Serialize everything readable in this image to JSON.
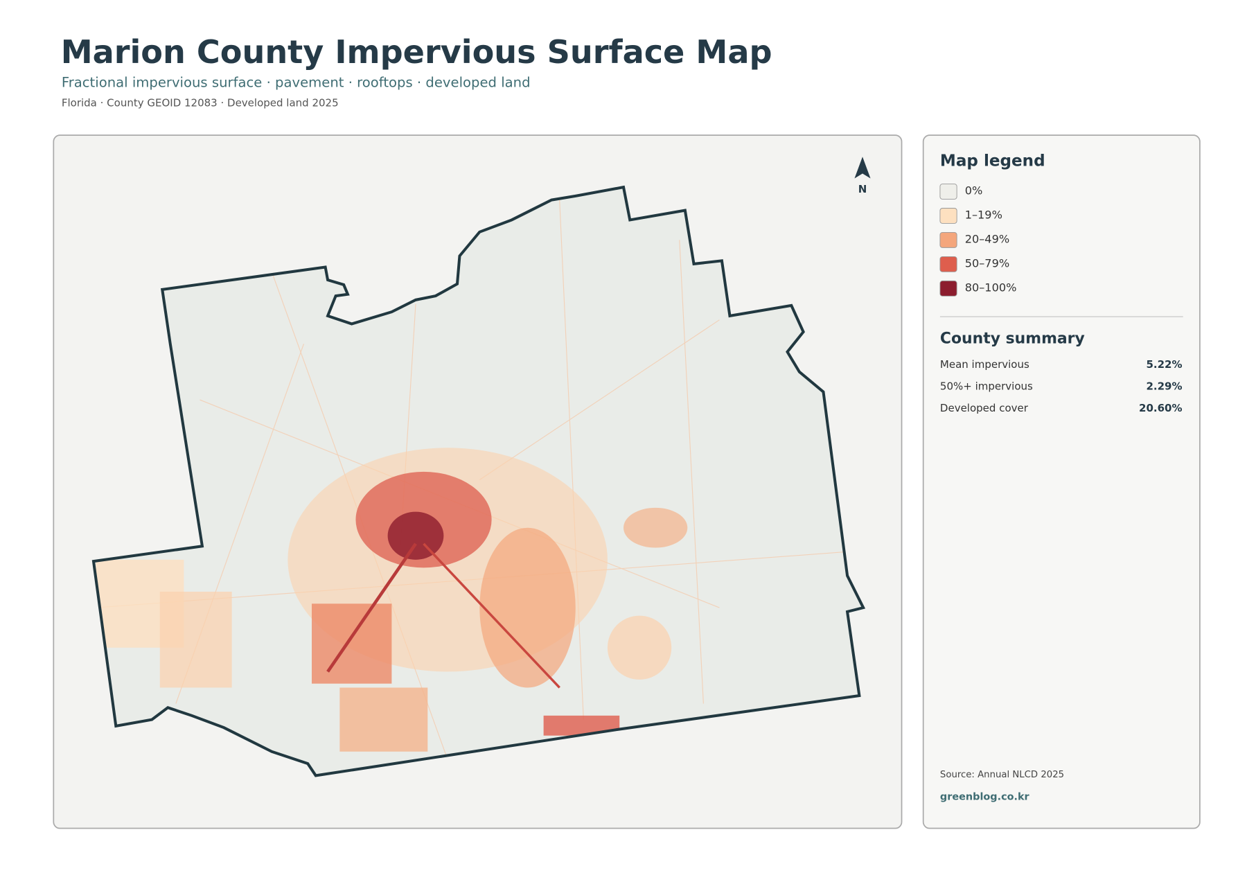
{
  "header": {
    "title": "Marion County Impervious Surface Map",
    "subtitle": "Fractional impervious surface · pavement · rooftops · developed land",
    "meta": "Florida · County GEOID 12083 · Developed land 2025"
  },
  "map": {
    "north_label": "N"
  },
  "legend": {
    "title": "Map legend",
    "items": [
      {
        "label": "0%",
        "color": "#efefea"
      },
      {
        "label": "1–19%",
        "color": "#fde0c0"
      },
      {
        "label": "20–49%",
        "color": "#f4a67c"
      },
      {
        "label": "50–79%",
        "color": "#de5e4d"
      },
      {
        "label": "80–100%",
        "color": "#8c1d2e"
      }
    ]
  },
  "summary": {
    "title": "County summary",
    "rows": [
      {
        "label": "Mean impervious",
        "value": "5.22%"
      },
      {
        "label": "50%+ impervious",
        "value": "2.29%"
      },
      {
        "label": "Developed cover",
        "value": "20.60%"
      }
    ]
  },
  "footer": {
    "source": "Source: Annual NLCD 2025",
    "site": "greenblog.co.kr"
  }
}
